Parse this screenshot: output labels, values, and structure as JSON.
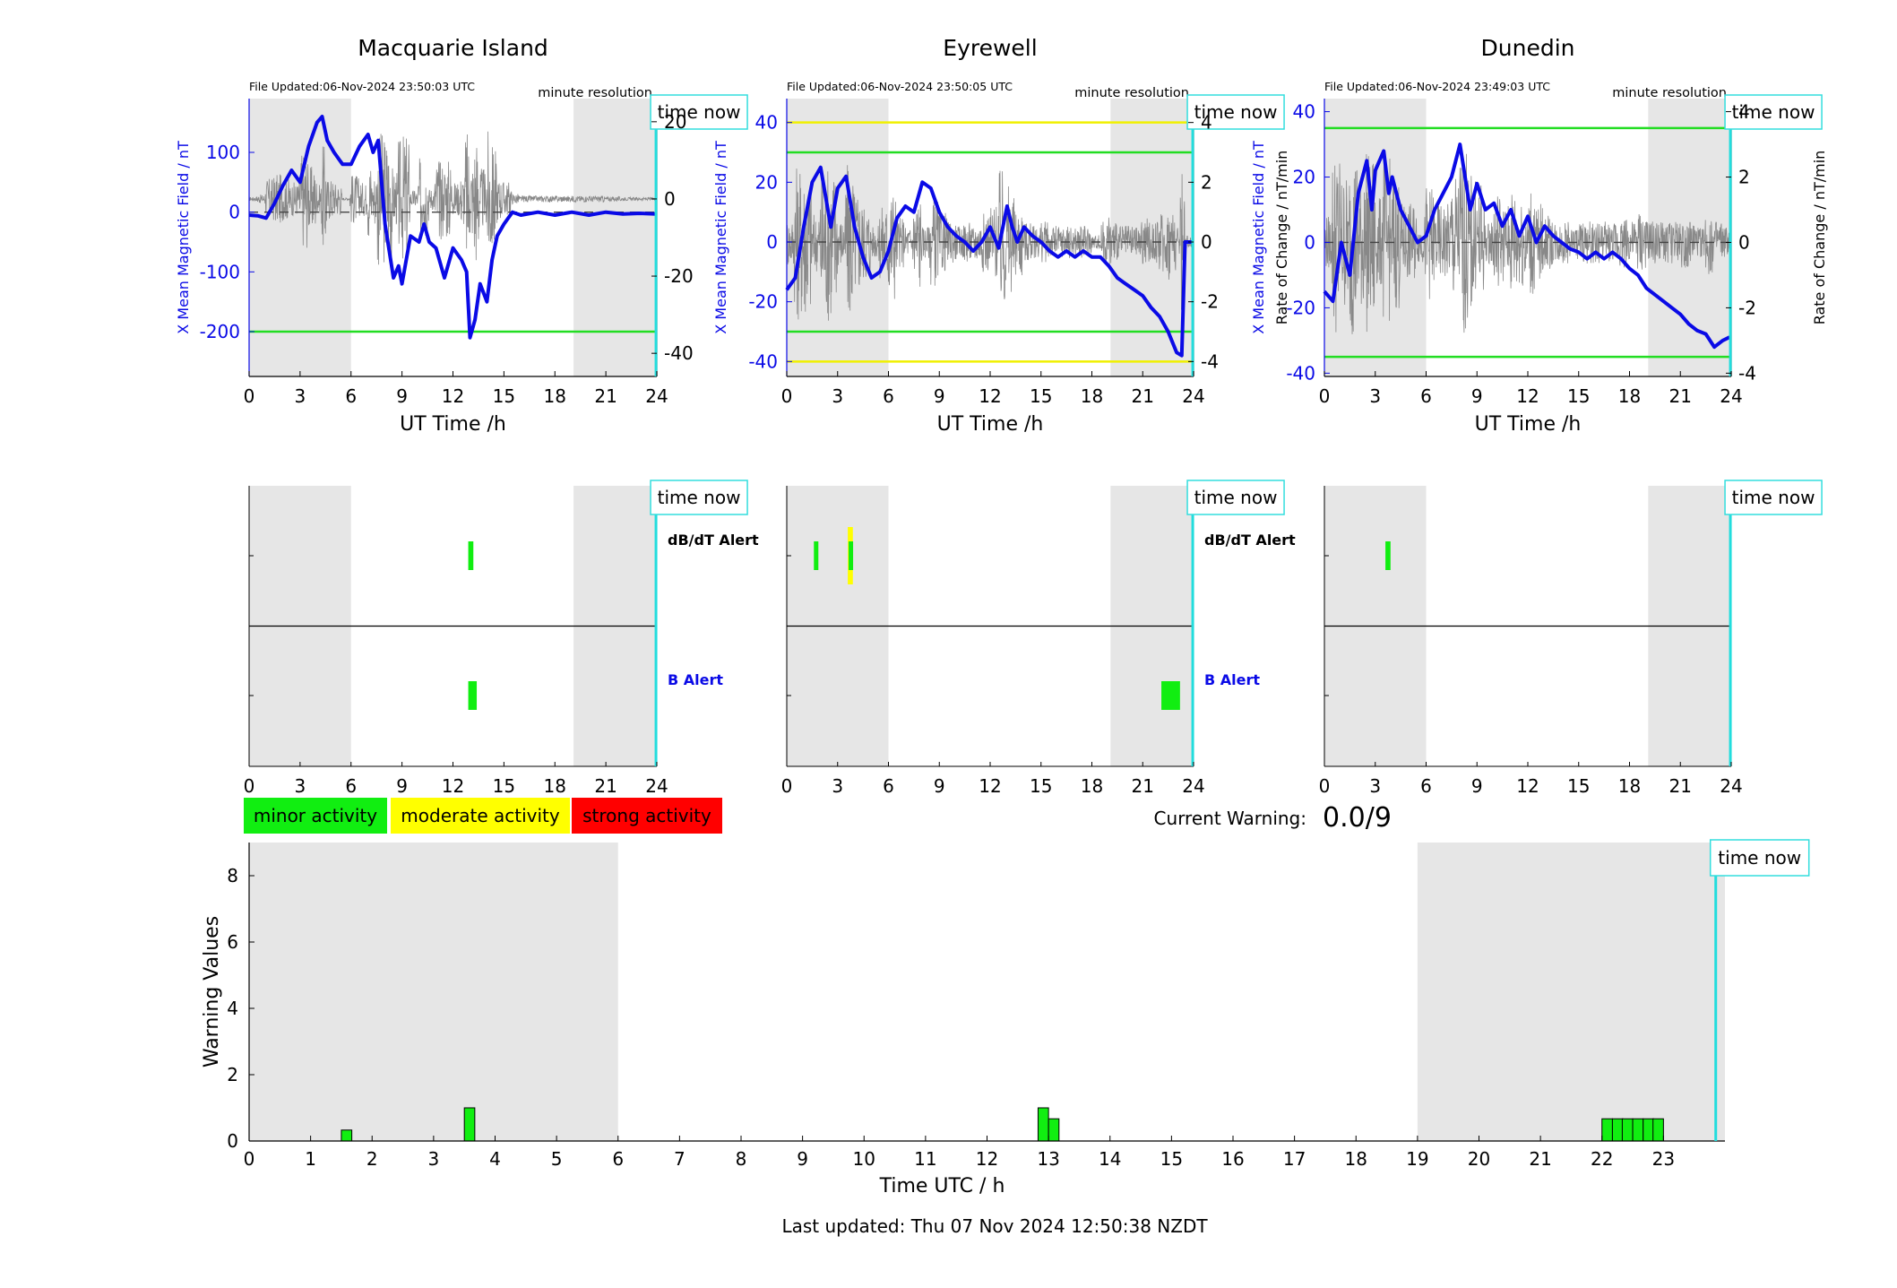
{
  "footer": {
    "last_updated": "Last updated: Thu 07 Nov 2024 12:50:38 NZDT"
  },
  "stations": [
    {
      "name": "Macquarie Island",
      "file_updated": "File Updated:06-Nov-2024 23:50:03 UTC",
      "resolution": "minute resolution",
      "time_now_label": "time now",
      "time_now_h": 23.95,
      "night_shading_h": [
        [
          0,
          6
        ],
        [
          19.1,
          24
        ]
      ],
      "ylabel_left": "X Mean Magnetic Field / nT",
      "ylabel_right": "",
      "xlabel": "UT Time /h",
      "ylim": [
        -275,
        190
      ],
      "yticks": [
        -200,
        -100,
        0,
        100
      ],
      "right_ylim": [
        -46,
        26
      ],
      "right_yticks": [
        -40,
        -20,
        0,
        20
      ],
      "thresholds": [
        {
          "value": -200,
          "color": "#22dd22"
        }
      ],
      "field_series": [
        [
          0,
          -5
        ],
        [
          0.5,
          -6
        ],
        [
          1,
          -10
        ],
        [
          1.5,
          15
        ],
        [
          2,
          45
        ],
        [
          2.5,
          70
        ],
        [
          3,
          50
        ],
        [
          3.5,
          110
        ],
        [
          4,
          150
        ],
        [
          4.3,
          160
        ],
        [
          4.6,
          120
        ],
        [
          5,
          100
        ],
        [
          5.5,
          80
        ],
        [
          6,
          80
        ],
        [
          6.5,
          110
        ],
        [
          7,
          130
        ],
        [
          7.3,
          100
        ],
        [
          7.6,
          120
        ],
        [
          8,
          -20
        ],
        [
          8.5,
          -110
        ],
        [
          8.8,
          -90
        ],
        [
          9,
          -120
        ],
        [
          9.5,
          -40
        ],
        [
          10,
          -50
        ],
        [
          10.3,
          -20
        ],
        [
          10.6,
          -50
        ],
        [
          11,
          -60
        ],
        [
          11.5,
          -110
        ],
        [
          12,
          -60
        ],
        [
          12.5,
          -80
        ],
        [
          12.8,
          -100
        ],
        [
          13,
          -210
        ],
        [
          13.3,
          -180
        ],
        [
          13.6,
          -120
        ],
        [
          14,
          -150
        ],
        [
          14.3,
          -80
        ],
        [
          14.6,
          -40
        ],
        [
          15,
          -20
        ],
        [
          15.5,
          0
        ],
        [
          16,
          -5
        ],
        [
          17,
          0
        ],
        [
          18,
          -5
        ],
        [
          19,
          0
        ],
        [
          20,
          -5
        ],
        [
          21,
          0
        ],
        [
          22,
          -3
        ],
        [
          23,
          -2
        ],
        [
          23.95,
          -3
        ]
      ],
      "rate_noise_amplitude": 8
    },
    {
      "name": "Eyrewell",
      "file_updated": "File Updated:06-Nov-2024 23:50:05 UTC",
      "resolution": "minute resolution",
      "time_now_label": "time now",
      "time_now_h": 23.95,
      "night_shading_h": [
        [
          0,
          6
        ],
        [
          19.1,
          24
        ]
      ],
      "ylabel_left": "X Mean Magnetic Field / nT",
      "ylabel_right": "Rate of Change / nT/min",
      "xlabel": "UT Time /h",
      "ylim": [
        -45,
        48
      ],
      "yticks": [
        -40,
        -20,
        0,
        20,
        40
      ],
      "right_ylim": [
        -4.5,
        4.8
      ],
      "right_yticks": [
        -4,
        -2,
        0,
        2,
        4
      ],
      "thresholds": [
        {
          "value": 40,
          "color": "#f0f000"
        },
        {
          "value": 30,
          "color": "#22dd22"
        },
        {
          "value": -30,
          "color": "#22dd22"
        },
        {
          "value": -40,
          "color": "#f0f000"
        }
      ],
      "field_series": [
        [
          0,
          -16
        ],
        [
          0.5,
          -12
        ],
        [
          1,
          5
        ],
        [
          1.5,
          20
        ],
        [
          2,
          25
        ],
        [
          2.3,
          15
        ],
        [
          2.6,
          5
        ],
        [
          3,
          18
        ],
        [
          3.5,
          22
        ],
        [
          4,
          5
        ],
        [
          4.5,
          -5
        ],
        [
          5,
          -12
        ],
        [
          5.5,
          -10
        ],
        [
          6,
          -3
        ],
        [
          6.5,
          8
        ],
        [
          7,
          12
        ],
        [
          7.5,
          10
        ],
        [
          8,
          20
        ],
        [
          8.5,
          18
        ],
        [
          9,
          10
        ],
        [
          9.5,
          5
        ],
        [
          10,
          2
        ],
        [
          10.5,
          0
        ],
        [
          11,
          -3
        ],
        [
          11.5,
          0
        ],
        [
          12,
          5
        ],
        [
          12.5,
          -2
        ],
        [
          13,
          12
        ],
        [
          13.3,
          5
        ],
        [
          13.6,
          0
        ],
        [
          14,
          5
        ],
        [
          14.5,
          2
        ],
        [
          15,
          0
        ],
        [
          15.5,
          -3
        ],
        [
          16,
          -5
        ],
        [
          16.5,
          -3
        ],
        [
          17,
          -5
        ],
        [
          17.5,
          -3
        ],
        [
          18,
          -5
        ],
        [
          18.5,
          -5
        ],
        [
          19,
          -8
        ],
        [
          19.5,
          -12
        ],
        [
          20,
          -14
        ],
        [
          20.5,
          -16
        ],
        [
          21,
          -18
        ],
        [
          21.5,
          -22
        ],
        [
          22,
          -25
        ],
        [
          22.5,
          -30
        ],
        [
          23,
          -37
        ],
        [
          23.3,
          -38
        ],
        [
          23.5,
          0
        ],
        [
          23.95,
          0
        ]
      ],
      "rate_noise_amplitude": 1.2
    },
    {
      "name": "Dunedin",
      "file_updated": "File Updated:06-Nov-2024 23:49:03 UTC",
      "resolution": "minute resolution",
      "time_now_label": "time now",
      "time_now_h": 23.95,
      "night_shading_h": [
        [
          0,
          6
        ],
        [
          19.1,
          24
        ]
      ],
      "ylabel_left": "X Mean Magnetic Field / nT",
      "ylabel_right": "Rate of Change / nT/min",
      "xlabel": "UT Time /h",
      "ylim": [
        -41,
        44
      ],
      "yticks": [
        -40,
        -20,
        0,
        20,
        40
      ],
      "right_ylim": [
        -4.1,
        4.4
      ],
      "right_yticks": [
        -4,
        -2,
        0,
        2,
        4
      ],
      "thresholds": [
        {
          "value": 35,
          "color": "#22dd22"
        },
        {
          "value": -35,
          "color": "#22dd22"
        }
      ],
      "field_series": [
        [
          0,
          -15
        ],
        [
          0.5,
          -18
        ],
        [
          1,
          0
        ],
        [
          1.5,
          -10
        ],
        [
          2,
          15
        ],
        [
          2.5,
          25
        ],
        [
          2.8,
          10
        ],
        [
          3,
          22
        ],
        [
          3.5,
          28
        ],
        [
          3.8,
          15
        ],
        [
          4,
          20
        ],
        [
          4.5,
          10
        ],
        [
          5,
          5
        ],
        [
          5.5,
          0
        ],
        [
          6,
          2
        ],
        [
          6.5,
          10
        ],
        [
          7,
          15
        ],
        [
          7.5,
          20
        ],
        [
          8,
          30
        ],
        [
          8.3,
          20
        ],
        [
          8.6,
          10
        ],
        [
          9,
          18
        ],
        [
          9.5,
          10
        ],
        [
          10,
          12
        ],
        [
          10.5,
          5
        ],
        [
          11,
          10
        ],
        [
          11.5,
          2
        ],
        [
          12,
          8
        ],
        [
          12.5,
          0
        ],
        [
          13,
          5
        ],
        [
          13.5,
          2
        ],
        [
          14,
          0
        ],
        [
          14.5,
          -2
        ],
        [
          15,
          -3
        ],
        [
          15.5,
          -5
        ],
        [
          16,
          -3
        ],
        [
          16.5,
          -5
        ],
        [
          17,
          -3
        ],
        [
          17.5,
          -5
        ],
        [
          18,
          -8
        ],
        [
          18.5,
          -10
        ],
        [
          19,
          -14
        ],
        [
          19.5,
          -16
        ],
        [
          20,
          -18
        ],
        [
          20.5,
          -20
        ],
        [
          21,
          -22
        ],
        [
          21.5,
          -25
        ],
        [
          22,
          -27
        ],
        [
          22.5,
          -28
        ],
        [
          23,
          -32
        ],
        [
          23.5,
          -30
        ],
        [
          23.9,
          -29
        ]
      ],
      "rate_noise_amplitude": 1.3
    }
  ],
  "alerts": {
    "dbdt_label": "dB/dT Alert",
    "b_label": "B Alert",
    "time_now_label": "time now",
    "xticks": [
      0,
      3,
      6,
      9,
      12,
      15,
      18,
      21,
      24
    ],
    "stations": [
      {
        "dbdt": [
          {
            "start": 12.9,
            "end": 13.2,
            "level": "minor"
          }
        ],
        "b": [
          {
            "start": 12.9,
            "end": 13.4,
            "level": "minor"
          }
        ],
        "show_labels": true
      },
      {
        "dbdt": [
          {
            "start": 1.6,
            "end": 1.8,
            "level": "minor"
          },
          {
            "start": 3.6,
            "end": 3.9,
            "level": "moderate"
          },
          {
            "start": 3.65,
            "end": 3.85,
            "level": "minor"
          }
        ],
        "b": [
          {
            "start": 22.1,
            "end": 23.2,
            "level": "minor"
          }
        ],
        "show_labels": true
      },
      {
        "dbdt": [
          {
            "start": 3.6,
            "end": 3.9,
            "level": "minor"
          }
        ],
        "b": [],
        "show_labels": false
      }
    ]
  },
  "legend": {
    "minor": {
      "label": "minor activity",
      "color": "#11ee11"
    },
    "moderate": {
      "label": "moderate activity",
      "color": "#ffff00"
    },
    "strong": {
      "label": "strong activity",
      "color": "#ff0000"
    }
  },
  "current_warning": {
    "label": "Current Warning:",
    "value": "0.0/9"
  },
  "chart_data": {
    "type": "bar",
    "xlabel": "Time UTC / h",
    "ylabel": "Warning Values",
    "xlim": [
      0,
      24
    ],
    "ylim": [
      0,
      9
    ],
    "xticks": [
      0,
      1,
      2,
      3,
      4,
      5,
      6,
      7,
      8,
      9,
      10,
      11,
      12,
      13,
      14,
      15,
      16,
      17,
      18,
      19,
      20,
      21,
      22,
      23
    ],
    "yticks": [
      0,
      2,
      4,
      6,
      8
    ],
    "night_shading_h": [
      [
        0,
        6
      ],
      [
        19,
        24
      ]
    ],
    "time_now_label": "time now",
    "time_now_h": 23.85,
    "bar_width_h": 0.17,
    "bars": [
      {
        "x": 1.5,
        "value": 0.33
      },
      {
        "x": 3.5,
        "value": 1.0
      },
      {
        "x": 12.83,
        "value": 1.0
      },
      {
        "x": 13.0,
        "value": 0.67
      },
      {
        "x": 22.0,
        "value": 0.67
      },
      {
        "x": 22.17,
        "value": 0.67
      },
      {
        "x": 22.33,
        "value": 0.67
      },
      {
        "x": 22.5,
        "value": 0.67
      },
      {
        "x": 22.67,
        "value": 0.67
      },
      {
        "x": 22.83,
        "value": 0.67
      }
    ],
    "bar_color": "#11ee11"
  }
}
